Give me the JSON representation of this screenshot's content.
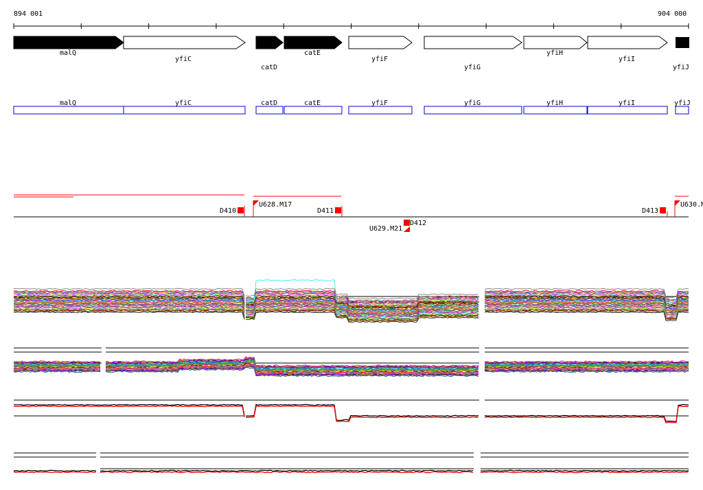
{
  "ruler": {
    "start_label": "894 001",
    "end_label": "904 000"
  },
  "colors": {
    "gene_fill": "#000000",
    "box_outline": "#0000cc",
    "marker": "#ff0000",
    "track_line": "#000000"
  },
  "genes": [
    {
      "name": "malQ",
      "strand": "+",
      "filled": true
    },
    {
      "name": "yfiC",
      "strand": "+",
      "filled": false
    },
    {
      "name": "catD",
      "strand": "+",
      "filled": true
    },
    {
      "name": "catE",
      "strand": "+",
      "filled": true
    },
    {
      "name": "yfiF",
      "strand": "+",
      "filled": false
    },
    {
      "name": "yfiG",
      "strand": "+",
      "filled": false
    },
    {
      "name": "yfiH",
      "strand": "+",
      "filled": false
    },
    {
      "name": "yfiI",
      "strand": "+",
      "filled": false
    },
    {
      "name": "yfiJ",
      "strand": "+",
      "filled": true
    }
  ],
  "boxes": [
    "malQ",
    "yfiC",
    "catD",
    "catE",
    "yfiF",
    "yfiG",
    "yfiH",
    "yfiI",
    "yfiJ"
  ],
  "features": [
    {
      "label": "D410",
      "kind": "D"
    },
    {
      "label": "U628.M17",
      "kind": "U"
    },
    {
      "label": "D411",
      "kind": "D"
    },
    {
      "label": "U629.M21",
      "kind": "U"
    },
    {
      "label": "D412",
      "kind": "D"
    },
    {
      "label": "D413",
      "kind": "D"
    },
    {
      "label": "U630.M",
      "kind": "U"
    }
  ]
}
